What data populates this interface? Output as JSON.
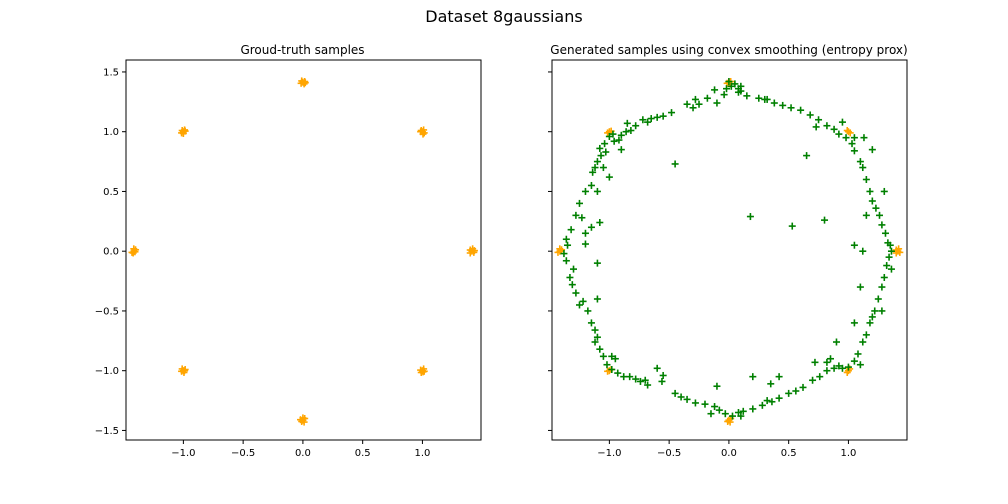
{
  "figure": {
    "title": "Dataset 8gaussians"
  },
  "chart_data": [
    {
      "type": "scatter",
      "title": "Groud-truth samples",
      "xlim": [
        -1.48,
        1.49
      ],
      "ylim": [
        -1.58,
        1.6
      ],
      "xticks": [
        -1.0,
        -0.5,
        0.0,
        0.5,
        1.0
      ],
      "xticklabels": [
        "−1.0",
        "−0.5",
        "0.0",
        "0.5",
        "1.0"
      ],
      "yticks": [
        -1.5,
        -1.0,
        -0.5,
        0.0,
        0.5,
        1.0,
        1.5
      ],
      "yticklabels": [
        "−1.5",
        "−1.0",
        "−0.5",
        "0.0",
        "0.5",
        "1.0",
        "1.5"
      ],
      "grid": false,
      "series": [
        {
          "color": "#FFA500",
          "marker": "+",
          "points": [
            [
              1.414,
              0.0
            ],
            [
              1.4,
              0.01
            ],
            [
              1.43,
              -0.01
            ],
            [
              1.42,
              0.02
            ],
            [
              1.4,
              -0.015
            ],
            [
              1.435,
              0.005
            ],
            [
              -1.414,
              0.0
            ],
            [
              -1.4,
              0.012
            ],
            [
              -1.43,
              -0.01
            ],
            [
              -1.415,
              0.02
            ],
            [
              -1.42,
              -0.015
            ],
            [
              -1.405,
              -0.005
            ],
            [
              0.0,
              1.414
            ],
            [
              0.015,
              1.42
            ],
            [
              -0.015,
              1.405
            ],
            [
              0.01,
              1.4
            ],
            [
              -0.01,
              1.425
            ],
            [
              0.02,
              1.41
            ],
            [
              0.0,
              -1.414
            ],
            [
              0.015,
              -1.4
            ],
            [
              -0.01,
              -1.425
            ],
            [
              0.01,
              -1.43
            ],
            [
              -0.02,
              -1.41
            ],
            [
              0.0,
              -1.395
            ],
            [
              1.0,
              1.0
            ],
            [
              1.015,
              0.99
            ],
            [
              0.99,
              1.01
            ],
            [
              1.005,
              0.98
            ],
            [
              0.985,
              1.0
            ],
            [
              1.01,
              1.015
            ],
            [
              -1.0,
              1.0
            ],
            [
              -0.985,
              1.005
            ],
            [
              -1.015,
              0.99
            ],
            [
              -0.99,
              1.015
            ],
            [
              -1.0,
              0.985
            ],
            [
              -1.01,
              1.01
            ],
            [
              1.0,
              -1.0
            ],
            [
              1.01,
              -0.985
            ],
            [
              0.99,
              -1.015
            ],
            [
              1.005,
              -1.01
            ],
            [
              0.985,
              -0.995
            ],
            [
              1.015,
              -1.005
            ],
            [
              -1.0,
              -1.0
            ],
            [
              -0.985,
              -0.99
            ],
            [
              -1.015,
              -1.005
            ],
            [
              -0.995,
              -1.015
            ],
            [
              -1.01,
              -0.985
            ],
            [
              -0.99,
              -1.0
            ]
          ]
        }
      ]
    },
    {
      "type": "scatter",
      "title": "Generated samples using convex smoothing (entropy prox)",
      "xlim": [
        -1.48,
        1.49
      ],
      "ylim": [
        -1.58,
        1.6
      ],
      "xticks": [
        -1.0,
        -0.5,
        0.0,
        0.5,
        1.0
      ],
      "xticklabels": [
        "−1.0",
        "−0.5",
        "0.0",
        "0.5",
        "1.0"
      ],
      "yticks": [
        -1.5,
        -1.0,
        -0.5,
        0.0,
        0.5,
        1.0,
        1.5
      ],
      "yticklabels": [],
      "grid": false,
      "series": [
        {
          "color": "#FFA500",
          "marker": "+",
          "points": [
            [
              1.414,
              0.0
            ],
            [
              1.4,
              0.01
            ],
            [
              1.43,
              -0.01
            ],
            [
              1.42,
              0.02
            ],
            [
              1.4,
              -0.015
            ],
            [
              -1.414,
              0.0
            ],
            [
              -1.4,
              0.012
            ],
            [
              -1.43,
              -0.01
            ],
            [
              -1.415,
              0.02
            ],
            [
              0.0,
              1.414
            ],
            [
              0.015,
              1.42
            ],
            [
              -0.015,
              1.405
            ],
            [
              0.01,
              1.4
            ],
            [
              0.0,
              -1.414
            ],
            [
              0.015,
              -1.4
            ],
            [
              -0.01,
              -1.425
            ],
            [
              0.01,
              -1.43
            ],
            [
              1.0,
              1.0
            ],
            [
              1.015,
              0.99
            ],
            [
              0.99,
              1.01
            ],
            [
              -1.0,
              1.0
            ],
            [
              -0.985,
              1.005
            ],
            [
              -1.015,
              0.99
            ],
            [
              1.0,
              -1.0
            ],
            [
              1.01,
              -0.985
            ],
            [
              0.99,
              -1.015
            ],
            [
              -1.0,
              -1.0
            ],
            [
              -0.985,
              -0.99
            ],
            [
              -1.015,
              -1.005
            ]
          ]
        },
        {
          "color": "#008000",
          "marker": "+",
          "points": [
            [
              0.0,
              1.42
            ],
            [
              0.02,
              1.38
            ],
            [
              -0.02,
              1.36
            ],
            [
              0.08,
              1.36
            ],
            [
              0.1,
              1.34
            ],
            [
              0.05,
              1.4
            ],
            [
              -0.25,
              1.23
            ],
            [
              -0.35,
              1.23
            ],
            [
              -0.28,
              1.27
            ],
            [
              -0.18,
              1.28
            ],
            [
              -0.1,
              1.24
            ],
            [
              -0.04,
              1.31
            ],
            [
              -0.48,
              1.16
            ],
            [
              -0.55,
              1.13
            ],
            [
              -0.6,
              1.12
            ],
            [
              -0.65,
              1.11
            ],
            [
              -0.68,
              1.08
            ],
            [
              -0.72,
              1.1
            ],
            [
              -0.78,
              1.05
            ],
            [
              -0.82,
              1.01
            ],
            [
              -0.86,
              1.0
            ],
            [
              -0.9,
              0.97
            ],
            [
              -0.92,
              0.93
            ],
            [
              -0.96,
              0.92
            ],
            [
              -0.97,
              0.98
            ],
            [
              -1.0,
              0.96
            ],
            [
              -1.04,
              0.9
            ],
            [
              -1.07,
              0.8
            ],
            [
              -1.1,
              0.75
            ],
            [
              -1.12,
              0.7
            ],
            [
              -1.14,
              0.66
            ],
            [
              -1.08,
              0.86
            ],
            [
              -1.03,
              0.83
            ],
            [
              -1.15,
              0.55
            ],
            [
              -1.2,
              0.5
            ],
            [
              -1.25,
              0.4
            ],
            [
              -1.28,
              0.3
            ],
            [
              -1.32,
              0.18
            ],
            [
              -1.35,
              0.05
            ],
            [
              -1.38,
              -0.02
            ],
            [
              -1.36,
              -0.08
            ],
            [
              -1.33,
              -0.22
            ],
            [
              -1.31,
              -0.28
            ],
            [
              -1.28,
              -0.35
            ],
            [
              -1.22,
              -0.42
            ],
            [
              -1.18,
              -0.5
            ],
            [
              -1.15,
              -0.6
            ],
            [
              -1.12,
              -0.66
            ],
            [
              -1.1,
              -0.72
            ],
            [
              -1.08,
              -0.82
            ],
            [
              -1.05,
              -0.88
            ],
            [
              -1.02,
              -0.95
            ],
            [
              -0.98,
              -0.99
            ],
            [
              -0.93,
              -1.02
            ],
            [
              -0.88,
              -1.05
            ],
            [
              -0.83,
              -1.05
            ],
            [
              -0.78,
              -1.07
            ],
            [
              -0.74,
              -1.09
            ],
            [
              -0.68,
              -1.12
            ],
            [
              -0.56,
              -1.09
            ],
            [
              -0.45,
              -1.19
            ],
            [
              -0.4,
              -1.22
            ],
            [
              -0.35,
              -1.24
            ],
            [
              -0.28,
              -1.27
            ],
            [
              -0.2,
              -1.28
            ],
            [
              -0.12,
              -1.3
            ],
            [
              -0.08,
              -1.33
            ],
            [
              -0.03,
              -1.36
            ],
            [
              0.03,
              -1.38
            ],
            [
              0.08,
              -1.35
            ],
            [
              0.12,
              -1.34
            ],
            [
              0.2,
              -1.32
            ],
            [
              0.28,
              -1.29
            ],
            [
              0.32,
              -1.25
            ],
            [
              0.36,
              -1.26
            ],
            [
              0.42,
              -1.23
            ],
            [
              0.5,
              -1.19
            ],
            [
              0.56,
              -1.17
            ],
            [
              0.62,
              -1.14
            ],
            [
              0.7,
              -1.08
            ],
            [
              0.76,
              -1.05
            ],
            [
              0.82,
              -1.0
            ],
            [
              0.88,
              -0.98
            ],
            [
              0.92,
              -0.96
            ],
            [
              0.95,
              -0.98
            ],
            [
              1.0,
              -0.97
            ],
            [
              1.05,
              -0.92
            ],
            [
              1.08,
              -0.86
            ],
            [
              1.12,
              -0.76
            ],
            [
              1.15,
              -0.7
            ],
            [
              1.18,
              -0.6
            ],
            [
              1.2,
              -0.55
            ],
            [
              1.22,
              -0.5
            ],
            [
              1.25,
              -0.4
            ],
            [
              1.28,
              -0.3
            ],
            [
              1.3,
              -0.22
            ],
            [
              1.32,
              -0.12
            ],
            [
              1.34,
              -0.05
            ],
            [
              1.36,
              0.0
            ],
            [
              1.33,
              0.07
            ],
            [
              1.31,
              0.15
            ],
            [
              1.28,
              0.22
            ],
            [
              1.26,
              0.3
            ],
            [
              1.23,
              0.36
            ],
            [
              1.2,
              0.42
            ],
            [
              1.18,
              0.5
            ],
            [
              1.15,
              0.6
            ],
            [
              1.12,
              0.7
            ],
            [
              1.1,
              0.75
            ],
            [
              1.05,
              0.84
            ],
            [
              1.03,
              0.9
            ],
            [
              0.98,
              0.95
            ],
            [
              0.92,
              0.98
            ],
            [
              0.88,
              1.02
            ],
            [
              0.82,
              1.05
            ],
            [
              0.75,
              1.1
            ],
            [
              0.68,
              1.14
            ],
            [
              0.6,
              1.18
            ],
            [
              0.52,
              1.2
            ],
            [
              0.45,
              1.22
            ],
            [
              0.38,
              1.24
            ],
            [
              0.32,
              1.27
            ],
            [
              0.25,
              1.28
            ],
            [
              0.15,
              1.3
            ],
            [
              0.08,
              1.33
            ],
            [
              -0.12,
              1.35
            ],
            [
              -0.45,
              0.73
            ],
            [
              0.18,
              0.29
            ],
            [
              0.53,
              0.21
            ],
            [
              0.65,
              0.8
            ],
            [
              0.8,
              0.26
            ],
            [
              1.05,
              0.05
            ],
            [
              0.95,
              1.08
            ],
            [
              0.73,
              1.04
            ],
            [
              -0.85,
              1.07
            ],
            [
              -0.9,
              0.85
            ],
            [
              -1.05,
              0.7
            ],
            [
              -1.0,
              0.62
            ],
            [
              -1.1,
              0.5
            ],
            [
              -1.23,
              0.28
            ],
            [
              -1.15,
              0.2
            ],
            [
              -1.2,
              0.06
            ],
            [
              -1.1,
              -0.1
            ],
            [
              -1.25,
              -0.45
            ],
            [
              -1.1,
              -0.4
            ],
            [
              -0.95,
              -0.9
            ],
            [
              -0.6,
              -0.98
            ],
            [
              -0.1,
              -1.13
            ],
            [
              0.2,
              -1.05
            ],
            [
              0.42,
              -1.05
            ],
            [
              0.85,
              -0.9
            ],
            [
              1.1,
              -0.95
            ],
            [
              0.9,
              -0.76
            ],
            [
              1.05,
              -0.6
            ],
            [
              1.1,
              -0.3
            ],
            [
              1.12,
              0.0
            ],
            [
              1.15,
              0.3
            ],
            [
              1.3,
              0.5
            ],
            [
              1.2,
              0.85
            ],
            [
              1.13,
              0.95
            ],
            [
              1.05,
              0.95
            ],
            [
              0.82,
              -0.93
            ],
            [
              0.72,
              -0.93
            ],
            [
              0.35,
              -1.11
            ],
            [
              0.1,
              -1.38
            ],
            [
              -0.15,
              -1.36
            ],
            [
              -0.55,
              -1.04
            ],
            [
              -0.7,
              -1.08
            ],
            [
              -0.98,
              -0.88
            ],
            [
              -1.12,
              -0.76
            ],
            [
              -1.3,
              -0.15
            ],
            [
              -1.36,
              0.1
            ],
            [
              -1.2,
              0.15
            ],
            [
              -1.08,
              0.24
            ],
            [
              1.28,
              -0.5
            ],
            [
              1.36,
              -0.15
            ],
            [
              1.35,
              0.05
            ],
            [
              -0.3,
              1.2
            ],
            [
              0.3,
              1.27
            ],
            [
              0.1,
              1.38
            ]
          ]
        }
      ]
    }
  ]
}
